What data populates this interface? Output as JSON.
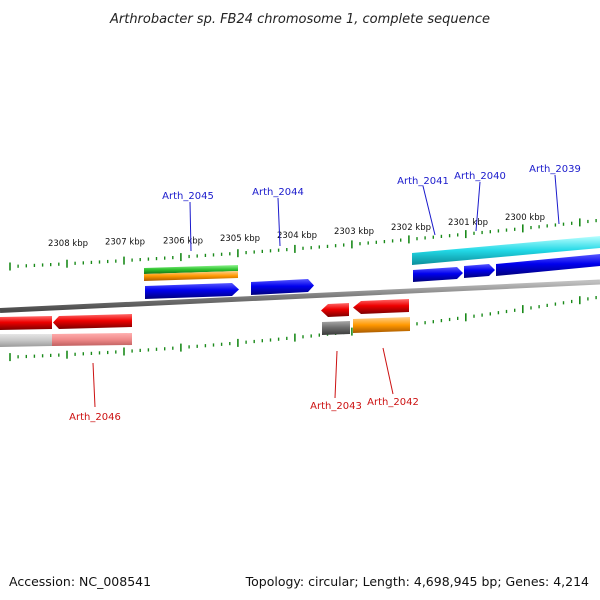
{
  "title": "Arthrobacter sp. FB24 chromosome 1, complete sequence",
  "footer": {
    "accession": "Accession: NC_008541",
    "summary": "Topology: circular; Length: 4,698,945 bp; Genes: 4,214"
  },
  "scale_labels": [
    "2308 kbp",
    "2307 kbp",
    "2306 kbp",
    "2305 kbp",
    "2304 kbp",
    "2303 kbp",
    "2302 kbp",
    "2301 kbp",
    "2300 kbp"
  ],
  "gene_labels": [
    {
      "text": "Arth_2045",
      "strand": "forward"
    },
    {
      "text": "Arth_2044",
      "strand": "forward"
    },
    {
      "text": "Arth_2041",
      "strand": "forward"
    },
    {
      "text": "Arth_2040",
      "strand": "forward"
    },
    {
      "text": "Arth_2039",
      "strand": "forward"
    },
    {
      "text": "Arth_2046",
      "strand": "reverse"
    },
    {
      "text": "Arth_2043",
      "strand": "reverse"
    },
    {
      "text": "Arth_2042",
      "strand": "reverse"
    }
  ],
  "colors": {
    "forward_cds": "#1010ee",
    "reverse_cds": "#ee1010",
    "forward_label": "#1a1acc",
    "reverse_label": "#cc1111",
    "rna": "#22c4cf",
    "tick": "#1a8a1a",
    "backbone": "#808080"
  }
}
